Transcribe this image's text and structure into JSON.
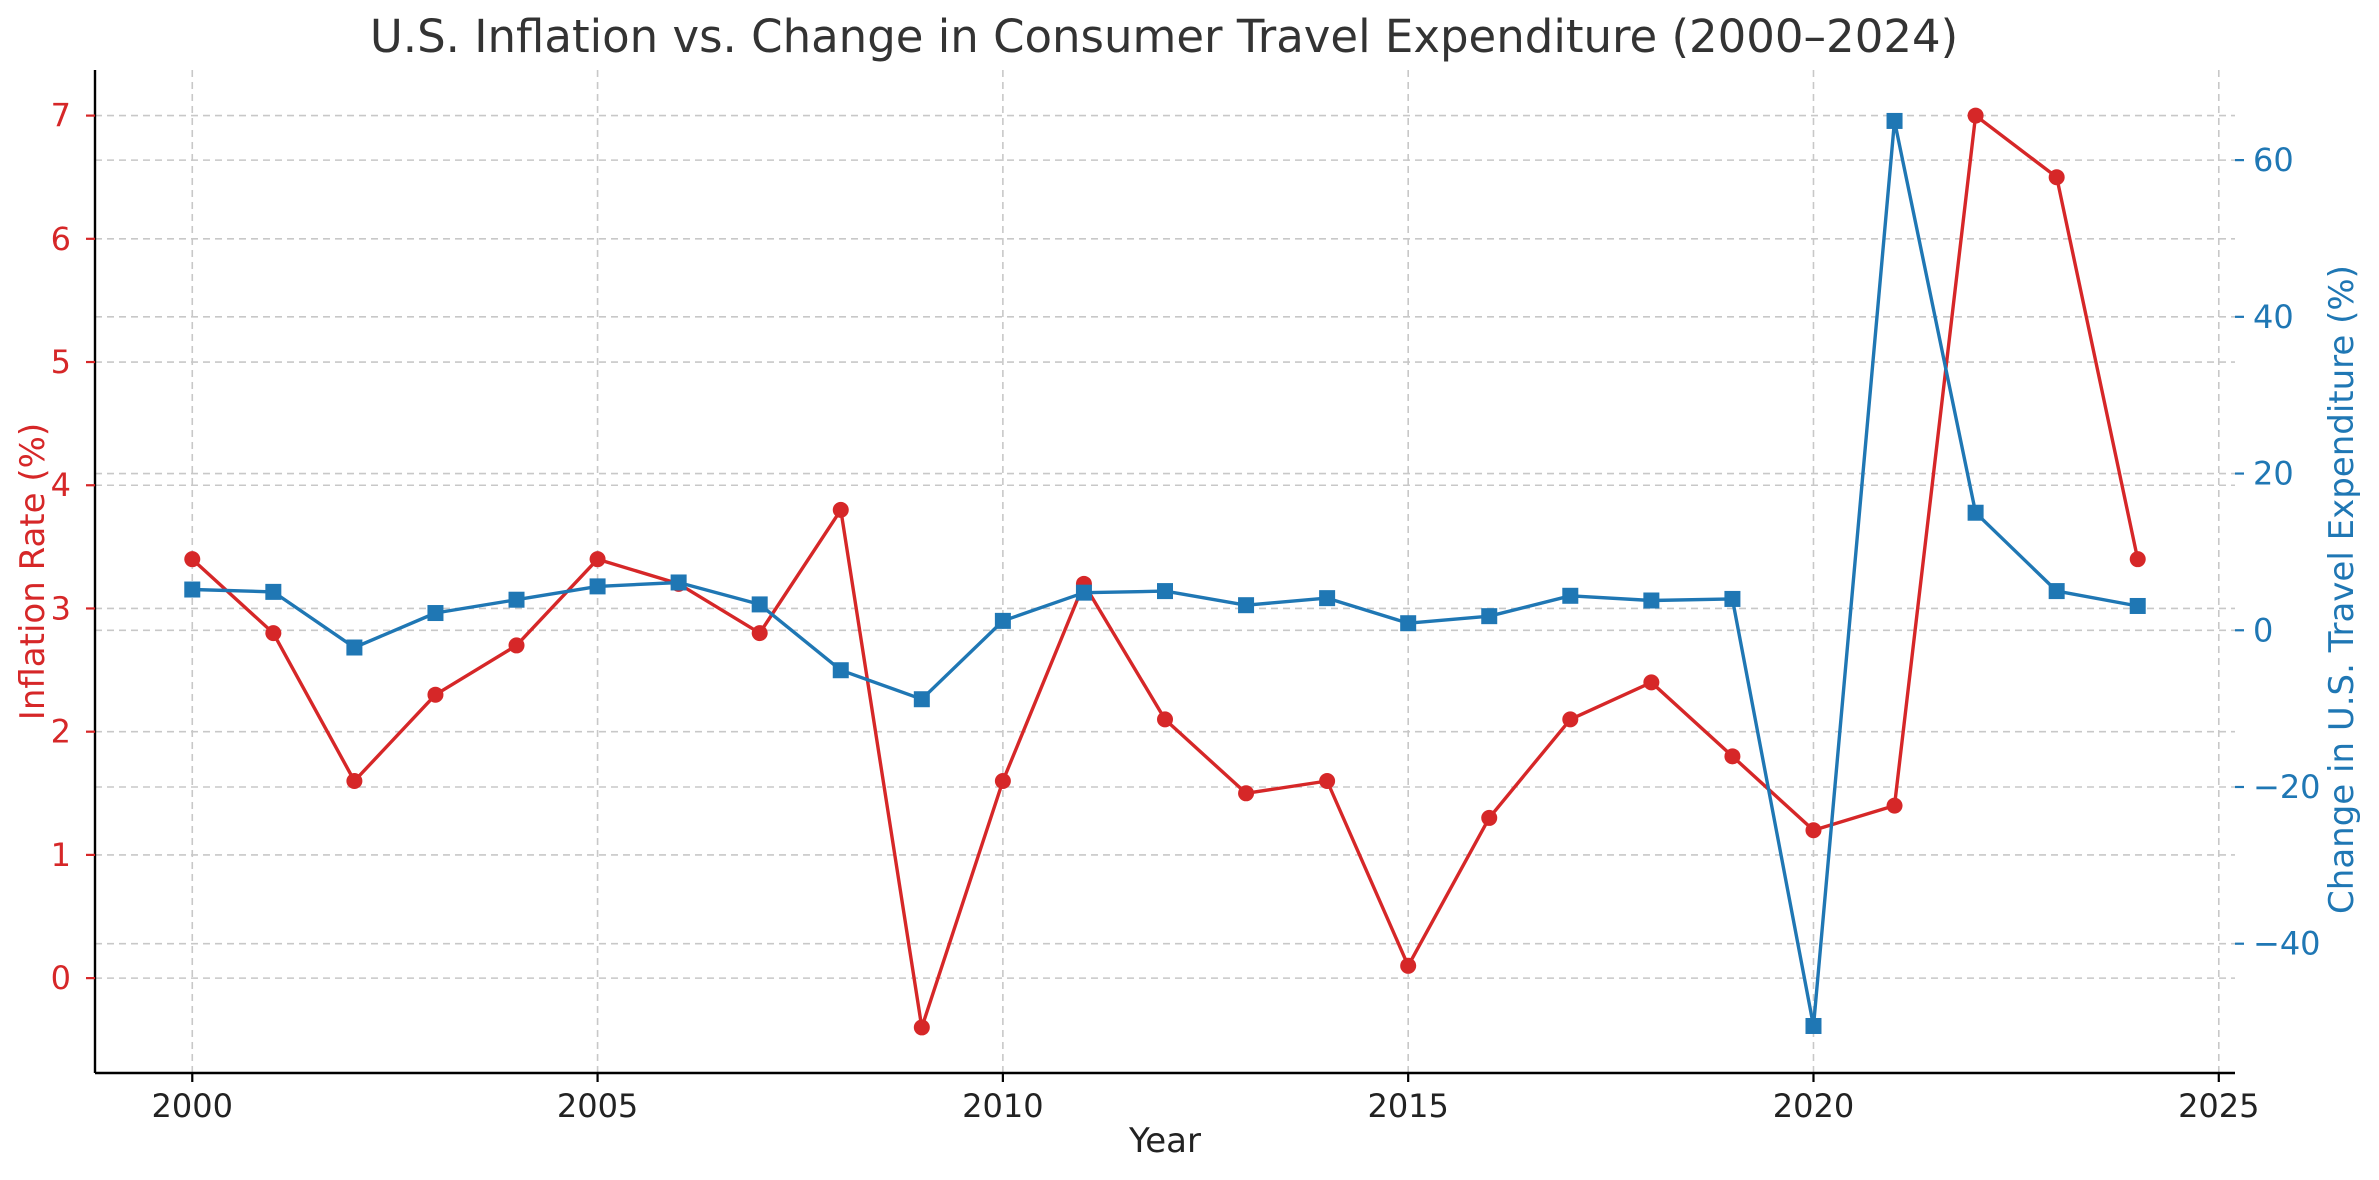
{
  "chart_data": {
    "type": "line",
    "title": "U.S. Inflation vs. Change in Consumer Travel Expenditure (2000–2024)",
    "xlabel": "Year",
    "ylabel_left": "Inflation Rate (%)",
    "ylabel_right": "Change in U.S. Travel Expenditure (%)",
    "x": [
      2000,
      2001,
      2002,
      2003,
      2004,
      2005,
      2006,
      2007,
      2008,
      2009,
      2010,
      2011,
      2012,
      2013,
      2014,
      2015,
      2016,
      2017,
      2018,
      2019,
      2020,
      2021,
      2022,
      2023,
      2024
    ],
    "xlim": [
      1998.8,
      2025.2
    ],
    "xticks": [
      2000,
      2005,
      2010,
      2015,
      2020,
      2025
    ],
    "ylim_left": [
      -0.77,
      7.37
    ],
    "yticks_left": [
      0,
      1,
      2,
      3,
      4,
      5,
      6,
      7
    ],
    "ylim_right": [
      -56.5,
      71.5
    ],
    "yticks_right": [
      -40,
      -20,
      0,
      20,
      40,
      60
    ],
    "tick_labels_right": [
      "−40",
      "−20",
      "0",
      "20",
      "40",
      "60"
    ],
    "grid": true,
    "series": [
      {
        "axis": "left",
        "color": "#d62728",
        "marker": "circle",
        "values": [
          3.4,
          2.8,
          1.6,
          2.3,
          2.7,
          3.4,
          3.2,
          2.8,
          3.8,
          -0.4,
          1.6,
          3.2,
          2.1,
          1.5,
          1.6,
          0.1,
          1.3,
          2.1,
          2.4,
          1.8,
          1.2,
          1.4,
          7.0,
          6.5,
          3.4
        ]
      },
      {
        "axis": "right",
        "color": "#1f77b4",
        "marker": "square",
        "values": [
          5.2,
          4.9,
          -2.2,
          2.2,
          3.9,
          5.6,
          6.1,
          3.3,
          -5.1,
          -8.8,
          1.2,
          4.8,
          5.0,
          3.2,
          4.1,
          0.9,
          1.8,
          4.4,
          3.8,
          4.0,
          -50.5,
          65.0,
          15.0,
          5.0,
          3.1
        ]
      }
    ]
  }
}
